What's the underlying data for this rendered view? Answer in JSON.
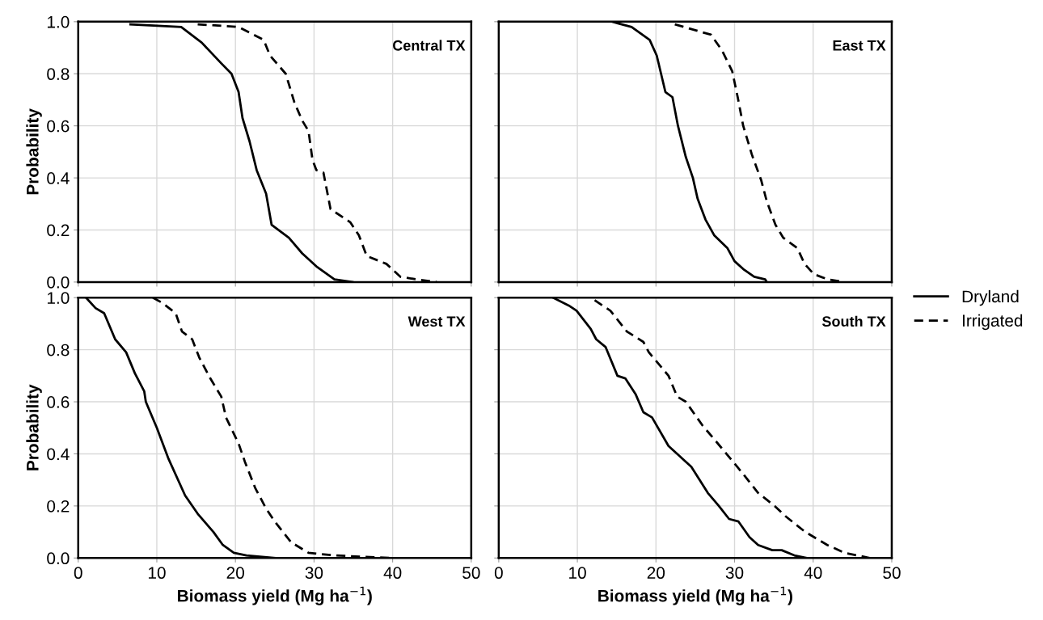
{
  "chart_data": [
    {
      "type": "line",
      "title": "Central TX",
      "ylabel": "Probability",
      "xlim": [
        0,
        50
      ],
      "ylim": [
        0,
        1
      ],
      "xticks": [
        {
          "value": 0,
          "label": null
        },
        {
          "value": 10,
          "label": null
        },
        {
          "value": 20,
          "label": null
        },
        {
          "value": 30,
          "label": null
        },
        {
          "value": 40,
          "label": null
        },
        {
          "value": 50,
          "label": null
        }
      ],
      "yticks": [
        {
          "value": 0,
          "label": "0.0"
        },
        {
          "value": 0.2,
          "label": "0.2"
        },
        {
          "value": 0.4,
          "label": "0.4"
        },
        {
          "value": 0.6,
          "label": "0.6"
        },
        {
          "value": 0.8,
          "label": "0.8"
        },
        {
          "value": 1,
          "label": "1.0"
        }
      ],
      "tick_labels": "y",
      "grid": true,
      "legend": "right",
      "series": [
        {
          "name": "Dryland",
          "color": "#000000",
          "line_style": "solid",
          "x": [
            6.65,
            13.1,
            15.7,
            18.2,
            19.5,
            20.4,
            20.9,
            21.8,
            22.7,
            23.9,
            24.6,
            26.8,
            28.5,
            30.3,
            32.6,
            34.9
          ],
          "values": [
            0.99,
            0.98,
            0.92,
            0.84,
            0.8,
            0.73,
            0.63,
            0.54,
            0.43,
            0.34,
            0.22,
            0.17,
            0.11,
            0.06,
            0.01,
            0.0
          ]
        },
        {
          "name": "Irrigated",
          "color": "#000000",
          "line_style": "dashed",
          "x": [
            15.2,
            20.4,
            23.6,
            24.4,
            26.4,
            27.5,
            28.5,
            29.3,
            29.8,
            30.3,
            31.2,
            32.1,
            34.6,
            35.7,
            36.7,
            39.2,
            41.0,
            43.1,
            45.6
          ],
          "values": [
            0.99,
            0.98,
            0.93,
            0.87,
            0.8,
            0.69,
            0.62,
            0.58,
            0.47,
            0.43,
            0.42,
            0.28,
            0.23,
            0.18,
            0.1,
            0.07,
            0.02,
            0.01,
            0.0
          ]
        }
      ]
    },
    {
      "type": "line",
      "title": "East TX",
      "xlim": [
        0,
        50
      ],
      "ylim": [
        0,
        1
      ],
      "xticks": [
        {
          "value": 0,
          "label": null
        },
        {
          "value": 10,
          "label": null
        },
        {
          "value": 20,
          "label": null
        },
        {
          "value": 30,
          "label": null
        },
        {
          "value": 40,
          "label": null
        },
        {
          "value": 50,
          "label": null
        }
      ],
      "yticks": [
        {
          "value": 0,
          "label": null
        },
        {
          "value": 0.2,
          "label": null
        },
        {
          "value": 0.4,
          "label": null
        },
        {
          "value": 0.6,
          "label": null
        },
        {
          "value": 0.8,
          "label": null
        },
        {
          "value": 1,
          "label": null
        }
      ],
      "tick_labels": false,
      "grid": true,
      "series": [
        {
          "color": "#000000",
          "line_style": "solid",
          "x": [
            14.4,
            16.9,
            19.2,
            20.1,
            21.2,
            22.1,
            22.8,
            23.8,
            24.7,
            25.3,
            26.3,
            27.4,
            29.1,
            30.0,
            31.1,
            32.5,
            33.9,
            34.1
          ],
          "values": [
            1.0,
            0.98,
            0.93,
            0.87,
            0.73,
            0.71,
            0.6,
            0.48,
            0.4,
            0.32,
            0.24,
            0.18,
            0.13,
            0.08,
            0.05,
            0.02,
            0.01,
            0.0
          ]
        },
        {
          "color": "#000000",
          "line_style": "dashed",
          "x": [
            22.4,
            27.0,
            28.4,
            29.7,
            30.4,
            31.1,
            32.2,
            33.4,
            34.1,
            35.2,
            36.2,
            38.0,
            38.9,
            40.1,
            41.9,
            43.9
          ],
          "values": [
            0.99,
            0.95,
            0.89,
            0.81,
            0.71,
            0.6,
            0.49,
            0.39,
            0.31,
            0.22,
            0.17,
            0.13,
            0.07,
            0.03,
            0.01,
            0.0
          ]
        }
      ]
    },
    {
      "type": "line",
      "title": "West TX",
      "ylabel": "Probability",
      "xlabel": "Biomass yield (Mg ha$^{−1}$)",
      "xlim": [
        0,
        50
      ],
      "ylim": [
        0,
        1
      ],
      "xticks": [
        0,
        10,
        20,
        30,
        40,
        50
      ],
      "yticks": [
        {
          "value": 0,
          "label": "0.0"
        },
        {
          "value": 0.2,
          "label": "0.2"
        },
        {
          "value": 0.4,
          "label": "0.4"
        },
        {
          "value": 0.6,
          "label": "0.6"
        },
        {
          "value": 0.8,
          "label": "0.8"
        },
        {
          "value": 1,
          "label": "1.0"
        }
      ],
      "grid": true,
      "series": [
        {
          "color": "#000000",
          "line_style": "solid",
          "x": [
            1.0,
            2.2,
            3.3,
            4.7,
            6.1,
            7.2,
            8.4,
            8.6,
            10.0,
            11.5,
            13.6,
            15.2,
            17.2,
            18.4,
            19.8,
            21.4,
            25.0
          ],
          "values": [
            1.0,
            0.96,
            0.94,
            0.84,
            0.79,
            0.71,
            0.64,
            0.6,
            0.5,
            0.38,
            0.24,
            0.17,
            0.1,
            0.05,
            0.02,
            0.01,
            0.0
          ]
        },
        {
          "color": "#000000",
          "line_style": "dashed",
          "x": [
            9.5,
            10.7,
            12.4,
            13.2,
            14.5,
            15.4,
            16.8,
            18.2,
            18.8,
            20.4,
            21.2,
            22.5,
            23.9,
            25.0,
            27.1,
            29.3,
            32.5,
            39.9
          ],
          "values": [
            1.0,
            0.98,
            0.94,
            0.87,
            0.84,
            0.77,
            0.69,
            0.62,
            0.54,
            0.44,
            0.37,
            0.27,
            0.19,
            0.14,
            0.06,
            0.02,
            0.01,
            0.0
          ]
        }
      ]
    },
    {
      "type": "line",
      "title": "South TX",
      "xlabel": "Biomass yield (Mg ha$^{−1}$)",
      "xlim": [
        0,
        50
      ],
      "ylim": [
        0,
        1
      ],
      "xticks": [
        0,
        10,
        20,
        30,
        40,
        50
      ],
      "yticks": [
        {
          "value": 0,
          "label": null
        },
        {
          "value": 0.2,
          "label": null
        },
        {
          "value": 0.4,
          "label": null
        },
        {
          "value": 0.6,
          "label": null
        },
        {
          "value": 0.8,
          "label": null
        },
        {
          "value": 1,
          "label": null
        }
      ],
      "tick_labels": "x",
      "grid": true,
      "series": [
        {
          "color": "#000000",
          "line_style": "solid",
          "x": [
            6.9,
            8.9,
            9.9,
            11.7,
            12.4,
            13.6,
            15.1,
            16.1,
            17.4,
            18.4,
            19.5,
            21.6,
            22.7,
            24.5,
            26.6,
            28.0,
            29.3,
            30.5,
            31.9,
            33.0,
            34.8,
            36.0,
            37.6,
            39.2
          ],
          "values": [
            1.0,
            0.97,
            0.95,
            0.88,
            0.84,
            0.81,
            0.7,
            0.69,
            0.63,
            0.56,
            0.54,
            0.43,
            0.4,
            0.35,
            0.25,
            0.2,
            0.15,
            0.14,
            0.08,
            0.05,
            0.03,
            0.03,
            0.01,
            0.0
          ]
        },
        {
          "color": "#000000",
          "line_style": "dashed",
          "x": [
            12.2,
            14.2,
            16.3,
            18.4,
            19.1,
            21.6,
            22.7,
            23.8,
            25.9,
            28.7,
            30.9,
            33.0,
            35.1,
            36.5,
            39.0,
            41.8,
            44.0,
            47.2
          ],
          "values": [
            0.99,
            0.95,
            0.87,
            0.83,
            0.79,
            0.7,
            0.62,
            0.6,
            0.51,
            0.41,
            0.33,
            0.25,
            0.2,
            0.16,
            0.1,
            0.05,
            0.02,
            0.0
          ]
        }
      ]
    }
  ]
}
